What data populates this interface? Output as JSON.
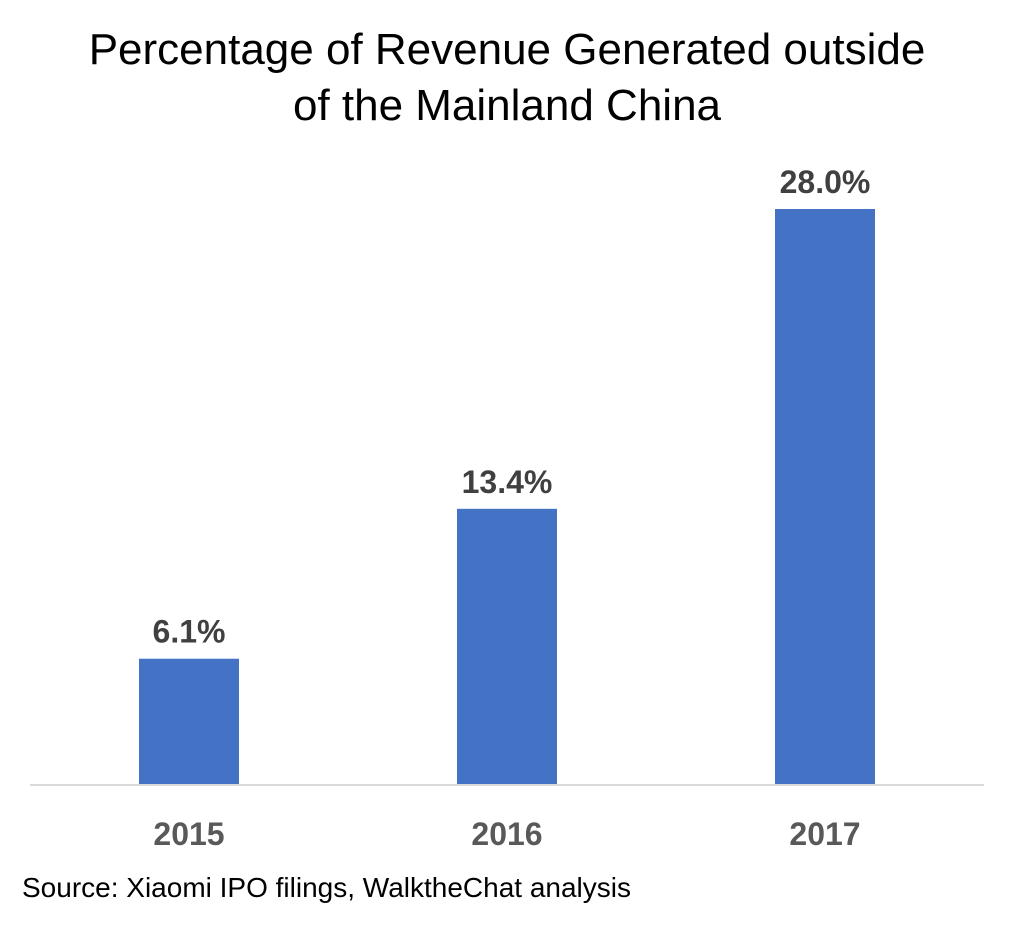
{
  "chart_data": {
    "type": "bar",
    "title": "Percentage of Revenue Generated outside\nof the Mainland China",
    "categories": [
      "2015",
      "2016",
      "2017"
    ],
    "values": [
      6.1,
      13.4,
      28.0
    ],
    "data_labels": [
      "6.1%",
      "13.4%",
      "28.0%"
    ],
    "xlabel": "",
    "ylabel": "",
    "ylim": [
      0,
      28.0
    ],
    "grid": false,
    "legend": "none",
    "bar_color": "#4472C4"
  },
  "source": "Source: Xiaomi IPO filings, WalktheChat analysis"
}
